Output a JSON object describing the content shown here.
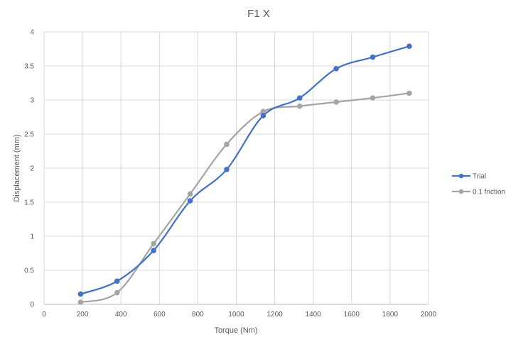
{
  "chart_data": {
    "type": "line",
    "title": "F1 X",
    "xlabel": "Torque (Nm)",
    "ylabel": "Displacement (mm)",
    "xlim": [
      0,
      2000
    ],
    "ylim": [
      0,
      4
    ],
    "xticks": [
      0,
      200,
      400,
      600,
      800,
      1000,
      1200,
      1400,
      1600,
      1800,
      2000
    ],
    "yticks": [
      0,
      0.5,
      1,
      1.5,
      2,
      2.5,
      3,
      3.5,
      4
    ],
    "xtick_labels": [
      "0",
      "200",
      "400",
      "600",
      "800",
      "1000",
      "1200",
      "1400",
      "1600",
      "1800",
      "2000"
    ],
    "ytick_labels": [
      "0",
      "0.5",
      "1",
      "1.5",
      "2",
      "2.5",
      "3",
      "3.5",
      "4"
    ],
    "grid": true,
    "legend_position": "right",
    "series": [
      {
        "name": "Trial",
        "color": "#4472C4",
        "x": [
          190,
          380,
          570,
          760,
          950,
          1140,
          1330,
          1520,
          1710,
          1900
        ],
        "y": [
          0.15,
          0.34,
          0.79,
          1.52,
          1.98,
          2.77,
          3.03,
          3.46,
          3.63,
          3.79
        ]
      },
      {
        "name": "0.1 friction",
        "color": "#A5A5A5",
        "x": [
          190,
          380,
          570,
          760,
          950,
          1140,
          1330,
          1520,
          1710,
          1900
        ],
        "y": [
          0.03,
          0.17,
          0.89,
          1.62,
          2.35,
          2.83,
          2.91,
          2.97,
          3.03,
          3.1
        ]
      }
    ]
  }
}
